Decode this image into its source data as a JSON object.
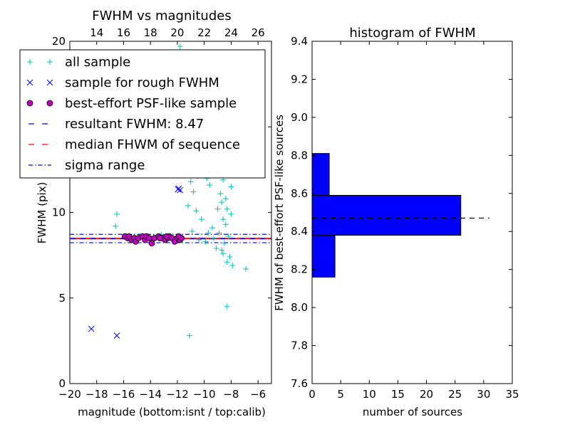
{
  "chart_data": [
    {
      "type": "scatter",
      "title": "FWHM vs magnitudes",
      "xlabel": "magnitude (bottom:isnt / top:calib)",
      "ylabel": "FWHM (pix)",
      "xlim": [
        -20,
        -5
      ],
      "ylim": [
        0,
        20
      ],
      "xticks": [
        -20,
        -18,
        -16,
        -14,
        -12,
        -10,
        -8,
        -6
      ],
      "xtick_labels": [
        "−20",
        "−18",
        "−16",
        "−14",
        "−12",
        "−10",
        "−8",
        "−6"
      ],
      "yticks": [
        0,
        5,
        10,
        15,
        20
      ],
      "ytick_labels": [
        "0",
        "5",
        "10",
        "15",
        "20"
      ],
      "top_axis": {
        "offset": 32,
        "ticks": [
          14,
          16,
          18,
          20,
          22,
          24,
          26
        ],
        "tick_labels": [
          "14",
          "16",
          "18",
          "20",
          "22",
          "24",
          "26"
        ]
      },
      "legend": {
        "placement": "upper-left",
        "entries": [
          {
            "label": "all sample",
            "marker": "+",
            "color": "#00bfbf"
          },
          {
            "label": "sample for rough FWHM",
            "marker": "x",
            "color": "#0000ff"
          },
          {
            "label": "best-effort PSF-like sample",
            "marker": "o",
            "color": "#bf00bf"
          },
          {
            "label": "resultant FWHM: 8.47",
            "marker": "dashed",
            "color": "#0000ff"
          },
          {
            "label": "median FHWM of sequence",
            "marker": "dashed",
            "color": "#ff0000"
          },
          {
            "label": "sigma range",
            "marker": "dashdot",
            "color": "#0000ff"
          }
        ]
      },
      "series": [
        {
          "name": "all sample",
          "color": "#00bfbf",
          "points": [
            [
              -16.5,
              9.9
            ],
            [
              -16.6,
              9.2
            ],
            [
              -11.8,
              19.7
            ],
            [
              -11.1,
              2.8
            ],
            [
              -8.3,
              4.5
            ],
            [
              -6.9,
              6.7
            ],
            [
              -10.1,
              14.2
            ],
            [
              -9.9,
              15.1
            ],
            [
              -9.7,
              13.3
            ],
            [
              -9.5,
              16.2
            ],
            [
              -9.3,
              14.8
            ],
            [
              -9.1,
              17.1
            ],
            [
              -8.9,
              13.9
            ],
            [
              -8.7,
              15.6
            ],
            [
              -8.5,
              12.7
            ],
            [
              -8.3,
              16.9
            ],
            [
              -8.1,
              14.3
            ],
            [
              -10.5,
              12.1
            ],
            [
              -10.8,
              11.2
            ],
            [
              -11.2,
              10.4
            ],
            [
              -11.6,
              12.9
            ],
            [
              -9.6,
              11.6
            ],
            [
              -9.2,
              12.4
            ],
            [
              -8.8,
              11.1
            ],
            [
              -8.4,
              10.8
            ],
            [
              -8.2,
              12.2
            ],
            [
              -8.6,
              9.6
            ],
            [
              -9.0,
              10.2
            ],
            [
              -9.4,
              9.1
            ],
            [
              -8.0,
              9.9
            ],
            [
              -8.9,
              8.8
            ],
            [
              -8.5,
              8.2
            ],
            [
              -8.7,
              7.8
            ],
            [
              -8.1,
              7.4
            ],
            [
              -8.3,
              7.1
            ],
            [
              -7.9,
              6.9
            ],
            [
              -8.6,
              7.6
            ],
            [
              -9.1,
              7.9
            ],
            [
              -8.2,
              8.6
            ],
            [
              -8.4,
              9.3
            ],
            [
              -9.3,
              8.5
            ],
            [
              -9.7,
              8.8
            ],
            [
              -10.2,
              9.6
            ],
            [
              -10.6,
              10.1
            ],
            [
              -9.0,
              13.1
            ],
            [
              -8.8,
              14.7
            ],
            [
              -8.6,
              11.9
            ],
            [
              -8.2,
              13.6
            ],
            [
              -8.0,
              11.5
            ],
            [
              -8.4,
              15.2
            ],
            [
              -9.4,
              13.7
            ],
            [
              -9.8,
              12.0
            ],
            [
              -10.3,
              13.4
            ],
            [
              -11.0,
              11.8
            ],
            [
              -12.5,
              8.6
            ],
            [
              -13.2,
              8.7
            ],
            [
              -14.8,
              8.6
            ],
            [
              -10.9,
              8.9
            ],
            [
              -10.4,
              8.4
            ],
            [
              -9.9,
              8.3
            ],
            [
              -8.7,
              10.6
            ],
            [
              -8.3,
              10.2
            ],
            [
              -8.1,
              16.3
            ],
            [
              -8.5,
              17.4
            ],
            [
              -9.2,
              16.6
            ],
            [
              -9.6,
              15.7
            ]
          ]
        },
        {
          "name": "sample for rough FWHM",
          "color": "#0000ff",
          "points": [
            [
              -18.4,
              3.2
            ],
            [
              -16.5,
              2.8
            ],
            [
              -11.9,
              11.4
            ],
            [
              -11.8,
              11.3
            ],
            [
              -11.95,
              11.35
            ]
          ]
        },
        {
          "name": "best-effort PSF-like sample",
          "color": "#bf00bf",
          "points": [
            [
              -15.9,
              8.6
            ],
            [
              -15.7,
              8.5
            ],
            [
              -15.6,
              8.6
            ],
            [
              -15.4,
              8.4
            ],
            [
              -15.2,
              8.5
            ],
            [
              -15.1,
              8.3
            ],
            [
              -14.9,
              8.5
            ],
            [
              -14.6,
              8.6
            ],
            [
              -14.4,
              8.4
            ],
            [
              -14.3,
              8.6
            ],
            [
              -14.1,
              8.5
            ],
            [
              -13.9,
              8.2
            ],
            [
              -13.7,
              8.5
            ],
            [
              -13.4,
              8.6
            ],
            [
              -13.1,
              8.5
            ],
            [
              -12.9,
              8.4
            ],
            [
              -12.7,
              8.5
            ],
            [
              -12.6,
              8.6
            ],
            [
              -12.4,
              8.5
            ],
            [
              -12.2,
              8.3
            ],
            [
              -12.0,
              8.5
            ],
            [
              -11.9,
              8.6
            ],
            [
              -11.8,
              8.4
            ],
            [
              -11.7,
              8.5
            ],
            [
              -12.8,
              8.6
            ],
            [
              -13.3,
              8.5
            ]
          ]
        }
      ],
      "hlines": [
        {
          "name": "resultant FWHM: 8.47",
          "y": 8.47,
          "color": "#0000ff",
          "style": "dashed"
        },
        {
          "name": "median FHWM of sequence",
          "y": 8.47,
          "color": "#ff0000",
          "style": "dashed"
        },
        {
          "name": "sigma range",
          "y": 8.72,
          "color": "#0000ff",
          "style": "dashdot"
        },
        {
          "name": "sigma range",
          "y": 8.23,
          "color": "#0000ff",
          "style": "dashdot"
        }
      ],
      "grid": false
    },
    {
      "type": "bar",
      "orientation": "horizontal",
      "title": "histogram of FWHM",
      "xlabel": "number of sources",
      "ylabel": "FWHM of best-effort PSF-like sources",
      "xlim": [
        0,
        35
      ],
      "ylim": [
        7.6,
        9.4
      ],
      "xticks": [
        0,
        5,
        10,
        15,
        20,
        25,
        30,
        35
      ],
      "xtick_labels": [
        "0",
        "5",
        "10",
        "15",
        "20",
        "25",
        "30",
        "35"
      ],
      "yticks": [
        7.6,
        7.8,
        8.0,
        8.2,
        8.4,
        8.6,
        8.8,
        9.0,
        9.2,
        9.4
      ],
      "ytick_labels": [
        "7.6",
        "7.8",
        "8.0",
        "8.2",
        "8.4",
        "8.6",
        "8.8",
        "9.0",
        "9.2",
        "9.4"
      ],
      "color": "#0000ff",
      "bins": [
        {
          "low": 8.16,
          "high": 8.38,
          "count": 4
        },
        {
          "low": 8.38,
          "high": 8.59,
          "count": 26
        },
        {
          "low": 8.59,
          "high": 8.81,
          "count": 3
        }
      ],
      "hline": {
        "y": 8.47,
        "x_range": [
          0,
          31
        ],
        "color": "#000000",
        "style": "dashed"
      },
      "grid": false
    }
  ]
}
